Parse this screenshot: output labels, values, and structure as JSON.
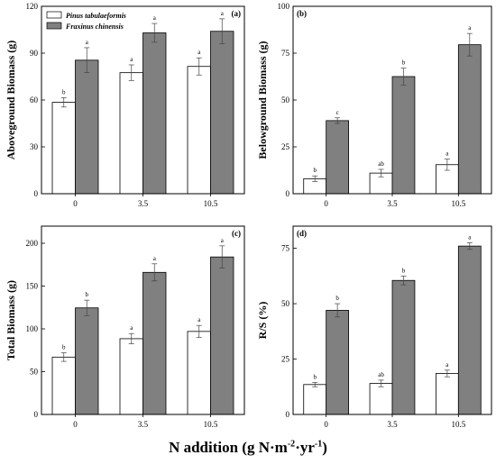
{
  "x_axis_title": {
    "main": "N addition (g N·m",
    "sup1": "-2",
    "mid": "·yr",
    "sup2": "-1",
    "end": ")"
  },
  "colors": {
    "pinus": "#ffffff",
    "fraxinus": "#808080",
    "stroke": "#000000"
  },
  "chart_data": [
    {
      "type": "bar",
      "panel": "(a)",
      "ylabel": "Aboveground Biomass (g)",
      "ylim": [
        0,
        120
      ],
      "yticks": [
        0,
        30,
        60,
        90,
        120
      ],
      "categories": [
        "0",
        "3.5",
        "10.5"
      ],
      "legend": {
        "position": "top-left"
      },
      "series": [
        {
          "name": "Pinus tabulaeformis",
          "values": [
            58.5,
            77.5,
            81.5
          ],
          "errors": [
            3,
            5,
            5.5
          ],
          "letters": [
            "b",
            "a",
            "a"
          ]
        },
        {
          "name": "Fraxinus chinensis",
          "values": [
            85.5,
            103,
            104
          ],
          "errors": [
            8,
            6,
            8
          ],
          "letters": [
            "a",
            "a",
            "a"
          ]
        }
      ]
    },
    {
      "type": "bar",
      "panel": "(b)",
      "ylabel": "Belowground Biomass (g)",
      "ylim": [
        0,
        100
      ],
      "yticks": [
        0,
        25,
        50,
        75,
        100
      ],
      "categories": [
        "0",
        "3.5",
        "10.5"
      ],
      "series": [
        {
          "values": [
            8,
            11,
            15.5
          ],
          "errors": [
            1.5,
            2,
            3
          ],
          "letters": [
            "b",
            "ab",
            "a"
          ]
        },
        {
          "values": [
            39,
            62.5,
            79.5
          ],
          "errors": [
            1.5,
            4.5,
            6
          ],
          "letters": [
            "c",
            "b",
            "a"
          ]
        }
      ]
    },
    {
      "type": "bar",
      "panel": "(c)",
      "ylabel": "Total Biomass (g)",
      "ylim": [
        0,
        220
      ],
      "yticks": [
        0,
        50,
        100,
        150,
        200
      ],
      "categories": [
        "0",
        "3.5",
        "10.5"
      ],
      "series": [
        {
          "values": [
            67,
            88.5,
            97
          ],
          "errors": [
            5,
            6,
            7
          ],
          "letters": [
            "b",
            "a",
            "a"
          ]
        },
        {
          "values": [
            124.5,
            166,
            184
          ],
          "errors": [
            9,
            10,
            13
          ],
          "letters": [
            "b",
            "a",
            "a"
          ]
        }
      ]
    },
    {
      "type": "bar",
      "panel": "(d)",
      "ylabel": "R/S (%)",
      "ylim": [
        0,
        85
      ],
      "yticks": [
        0,
        25,
        50,
        75
      ],
      "categories": [
        "0",
        "3.5",
        "10.5"
      ],
      "series": [
        {
          "values": [
            13.5,
            14,
            18.5
          ],
          "errors": [
            1,
            1.5,
            1.5
          ],
          "letters": [
            "b",
            "ab",
            "a"
          ]
        },
        {
          "values": [
            47,
            60.5,
            76
          ],
          "errors": [
            3,
            2,
            1.5
          ],
          "letters": [
            "b",
            "b",
            "a"
          ]
        }
      ]
    }
  ]
}
